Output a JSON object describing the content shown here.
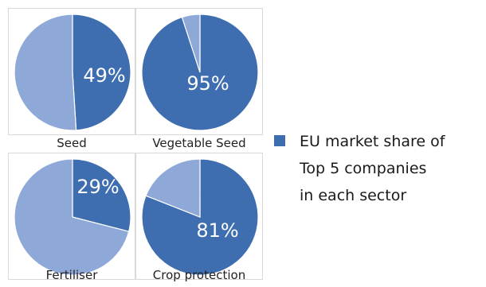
{
  "chart_data": [
    {
      "type": "pie",
      "label": "Seed",
      "values": [
        49,
        51
      ],
      "data_label": "49%",
      "series": "EU market share of Top 5 companies in each sector"
    },
    {
      "type": "pie",
      "label": "Vegetable Seed",
      "values": [
        95,
        5
      ],
      "data_label": "95%",
      "series": "EU market share of Top 5 companies in each sector"
    },
    {
      "type": "pie",
      "label": "Fertiliser",
      "values": [
        29,
        71
      ],
      "data_label": "29%",
      "series": "EU market share of Top 5 companies in each sector"
    },
    {
      "type": "pie",
      "label": "Crop protection",
      "values": [
        81,
        19
      ],
      "data_label": "81%",
      "series": "EU market share of Top 5 companies in each sector"
    }
  ],
  "legend": {
    "lines": [
      "EU market share of",
      "Top 5 companies",
      "in each sector"
    ]
  },
  "colors": {
    "share": "#3e6db0",
    "rest": "#8ea9d8",
    "label_text": "#ffffff"
  }
}
